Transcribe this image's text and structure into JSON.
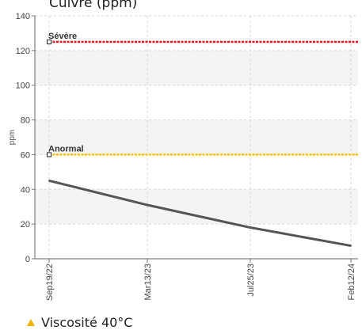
{
  "chart_data": {
    "type": "line",
    "title": "Cuivre (ppm)",
    "ylabel": "ppm",
    "xlabel": "",
    "ylim": [
      0,
      140
    ],
    "yticks": [
      0,
      20,
      40,
      60,
      80,
      100,
      120,
      140
    ],
    "x_categories": [
      "Sep19/22",
      "Mar13/23",
      "Jul25/23",
      "Feb12/24"
    ],
    "series": [
      {
        "x": [
          "Sep19/22",
          "Mar13/23",
          "Jul25/23",
          "Feb12/24"
        ],
        "values": [
          45,
          31,
          18,
          7.5
        ],
        "color": "#555555"
      }
    ],
    "thresholds": [
      {
        "label": "Sévère",
        "value": 125,
        "color": "#e8141e"
      },
      {
        "label": "Anormal",
        "value": 60,
        "color": "#f2c200"
      }
    ],
    "grid": true
  },
  "footer": {
    "label": "Viscosité 40°C",
    "icon": "warning-triangle-icon",
    "icon_color": "#f2b200"
  }
}
